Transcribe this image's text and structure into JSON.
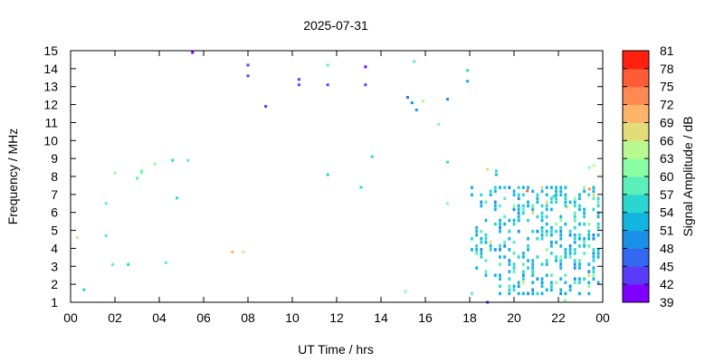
{
  "chart_data": {
    "type": "heatmap",
    "title": "2025-07-31",
    "xlabel": "UT Time / hrs",
    "ylabel": "Frequency / MHz",
    "colorbar_label": "Signal Amplitude / dB",
    "xlim": [
      0,
      24
    ],
    "ylim": [
      1,
      15
    ],
    "x_tick_labels": [
      "00",
      "02",
      "04",
      "06",
      "08",
      "10",
      "12",
      "14",
      "16",
      "18",
      "20",
      "22",
      "00"
    ],
    "y_ticks": [
      1,
      2,
      3,
      4,
      5,
      6,
      7,
      8,
      9,
      10,
      11,
      12,
      13,
      14,
      15
    ],
    "colorbar_ticks": [
      39,
      42,
      45,
      48,
      51,
      54,
      57,
      60,
      63,
      66,
      69,
      72,
      75,
      78,
      81
    ],
    "colorbar_colors": [
      "#8000ff",
      "#5a3cf8",
      "#3468f0",
      "#1a90e6",
      "#12b5df",
      "#2ad6d0",
      "#5cefba",
      "#8afea4",
      "#b8f890",
      "#e2dc7a",
      "#feb468",
      "#fe8a52",
      "#fe5c36",
      "#ff2010"
    ],
    "points": [
      [
        5.5,
        14.9,
        39
      ],
      [
        8.0,
        14.2,
        42
      ],
      [
        8.0,
        13.6,
        42
      ],
      [
        8.8,
        11.9,
        42
      ],
      [
        10.3,
        13.4,
        42
      ],
      [
        10.3,
        13.1,
        42
      ],
      [
        11.6,
        13.1,
        42
      ],
      [
        13.3,
        13.1,
        42
      ],
      [
        13.3,
        14.1,
        39
      ],
      [
        11.6,
        14.2,
        57
      ],
      [
        15.5,
        14.4,
        57
      ],
      [
        17.9,
        13.9,
        54
      ],
      [
        17.9,
        13.3,
        51
      ],
      [
        15.2,
        12.4,
        45
      ],
      [
        15.4,
        12.1,
        48
      ],
      [
        15.6,
        11.7,
        48
      ],
      [
        17.0,
        12.3,
        48
      ],
      [
        15.9,
        12.2,
        63
      ],
      [
        16.6,
        10.9,
        60
      ],
      [
        13.6,
        9.1,
        54
      ],
      [
        17.0,
        8.8,
        54
      ],
      [
        11.6,
        8.1,
        54
      ],
      [
        13.1,
        7.4,
        54
      ],
      [
        4.8,
        6.8,
        54
      ],
      [
        2.0,
        8.2,
        60
      ],
      [
        3.0,
        7.9,
        57
      ],
      [
        3.2,
        8.3,
        57
      ],
      [
        3.2,
        8.2,
        60
      ],
      [
        3.8,
        8.7,
        60
      ],
      [
        4.6,
        8.9,
        54
      ],
      [
        5.3,
        8.9,
        57
      ],
      [
        1.6,
        6.5,
        57
      ],
      [
        0.3,
        4.6,
        63
      ],
      [
        1.6,
        4.7,
        57
      ],
      [
        0.6,
        1.7,
        54
      ],
      [
        1.9,
        3.1,
        57
      ],
      [
        2.6,
        3.1,
        54
      ],
      [
        4.3,
        3.2,
        57
      ],
      [
        7.3,
        3.8,
        69
      ],
      [
        7.8,
        3.8,
        63
      ],
      [
        17.0,
        6.5,
        60
      ],
      [
        15.1,
        1.6,
        60
      ],
      [
        18.8,
        1.0,
        42
      ],
      [
        18.8,
        8.4,
        66
      ],
      [
        19.2,
        8.3,
        54
      ],
      [
        19.2,
        8.1,
        51
      ],
      [
        20.6,
        7.2,
        75
      ],
      [
        23.4,
        7.3,
        72
      ],
      [
        23.4,
        8.5,
        60
      ],
      [
        23.6,
        8.6,
        63
      ],
      [
        21.8,
        6.9,
        54
      ],
      [
        22.4,
        6.3,
        66
      ],
      [
        22.3,
        1.1,
        60
      ]
    ],
    "cluster": {
      "x_range": [
        18.1,
        23.8
      ],
      "y_range": [
        1.5,
        7.4
      ],
      "typical_amplitude": [
        51,
        54
      ]
    }
  }
}
